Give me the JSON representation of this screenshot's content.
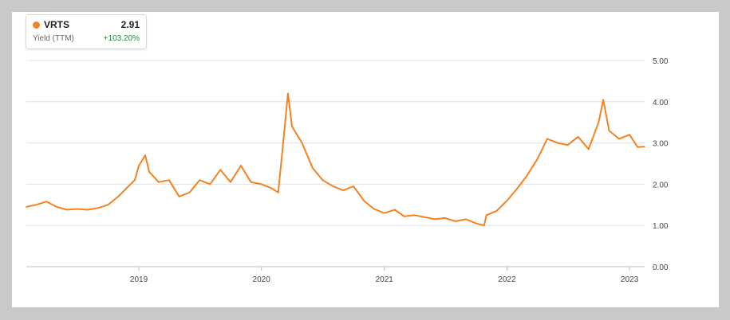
{
  "legend": {
    "ticker": "VRTS",
    "value": "2.91",
    "metric": "Yield (TTM)",
    "change": "+103.20%"
  },
  "colors": {
    "series": "#f58220",
    "positive": "#1e8e3e",
    "grid": "#e1e1e1",
    "axis": "#bdbdbd"
  },
  "chart_data": {
    "type": "line",
    "title": "",
    "xlabel": "",
    "ylabel": "",
    "ylim": [
      0,
      5
    ],
    "y_ticks": [
      "0.00",
      "1.00",
      "2.00",
      "3.00",
      "4.00",
      "5.00"
    ],
    "x_ticks": [
      "2019",
      "2020",
      "2021",
      "2022",
      "2023"
    ],
    "grid": true,
    "legend_position": "top-left",
    "series": [
      {
        "name": "VRTS",
        "x": [
          "2018-01-31",
          "2018-03-01",
          "2018-04-01",
          "2018-05-01",
          "2018-06-01",
          "2018-07-01",
          "2018-08-01",
          "2018-09-01",
          "2018-10-01",
          "2018-11-01",
          "2018-12-01",
          "2018-12-20",
          "2019-01-01",
          "2019-01-20",
          "2019-02-01",
          "2019-03-01",
          "2019-04-01",
          "2019-05-01",
          "2019-06-01",
          "2019-07-01",
          "2019-08-01",
          "2019-09-01",
          "2019-10-01",
          "2019-11-01",
          "2019-12-01",
          "2020-01-01",
          "2020-02-01",
          "2020-02-20",
          "2020-03-01",
          "2020-03-20",
          "2020-04-01",
          "2020-05-01",
          "2020-06-01",
          "2020-07-01",
          "2020-08-01",
          "2020-09-01",
          "2020-10-01",
          "2020-11-01",
          "2020-12-01",
          "2021-01-01",
          "2021-02-01",
          "2021-03-01",
          "2021-04-01",
          "2021-05-01",
          "2021-06-01",
          "2021-07-01",
          "2021-08-01",
          "2021-09-01",
          "2021-10-01",
          "2021-10-25",
          "2021-11-01",
          "2021-12-01",
          "2022-01-01",
          "2022-02-01",
          "2022-03-01",
          "2022-04-01",
          "2022-05-01",
          "2022-06-01",
          "2022-07-01",
          "2022-08-01",
          "2022-09-01",
          "2022-10-01",
          "2022-10-15",
          "2022-11-01",
          "2022-12-01",
          "2023-01-01",
          "2023-01-25",
          "2023-02-15"
        ],
        "y": [
          1.45,
          1.5,
          1.58,
          1.45,
          1.38,
          1.4,
          1.38,
          1.42,
          1.5,
          1.7,
          1.95,
          2.1,
          2.45,
          2.7,
          2.3,
          2.05,
          2.1,
          1.7,
          1.8,
          2.1,
          2.0,
          2.35,
          2.05,
          2.45,
          2.05,
          2.0,
          1.9,
          1.8,
          2.6,
          4.2,
          3.4,
          3.0,
          2.4,
          2.1,
          1.95,
          1.85,
          1.95,
          1.6,
          1.4,
          1.3,
          1.38,
          1.22,
          1.25,
          1.2,
          1.15,
          1.18,
          1.1,
          1.15,
          1.05,
          1.0,
          1.25,
          1.35,
          1.6,
          1.9,
          2.2,
          2.6,
          3.1,
          3.0,
          2.95,
          3.15,
          2.85,
          3.5,
          4.05,
          3.3,
          3.1,
          3.2,
          2.9,
          2.91
        ]
      }
    ]
  }
}
